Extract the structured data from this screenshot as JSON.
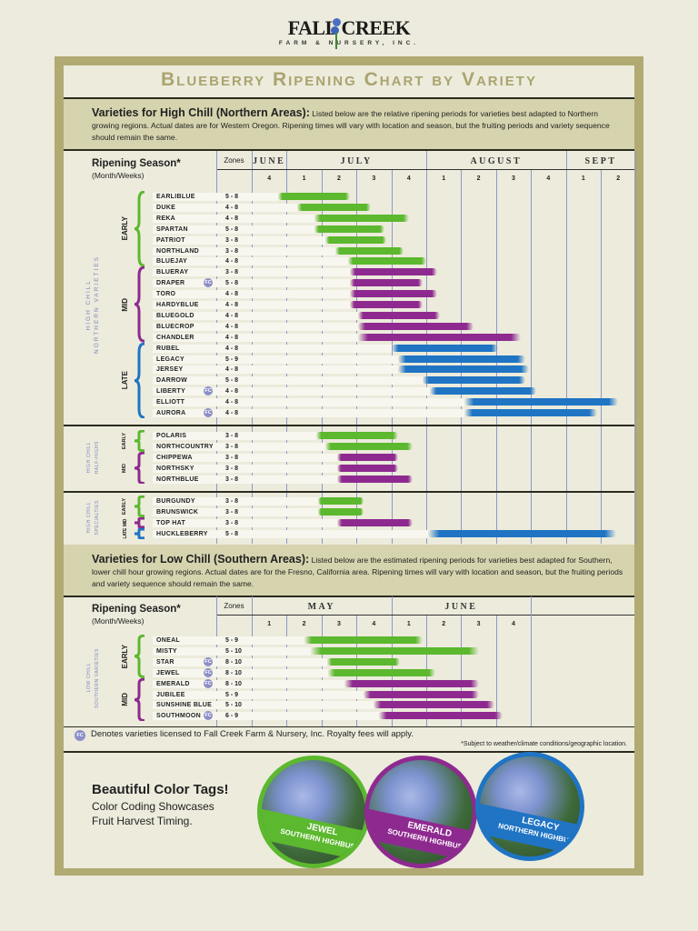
{
  "logo": {
    "name": "FALL CREEK",
    "subtitle": "FARM & NURSERY, INC."
  },
  "header": {
    "title": "Blueberry Ripening Chart by Variety"
  },
  "high_chill_intro": {
    "heading": "Varieties for High Chill (Northern Areas):",
    "text": "Listed below are the relative ripening periods for varieties best adapted to Northern growing regions.  Actual dates are for Western Oregon.  Ripening times will vary with location and season, but the fruiting periods and variety sequence should remain the same."
  },
  "low_chill_intro": {
    "heading": "Varieties for Low Chill (Southern Areas):",
    "text": "Listed below are the estimated ripening periods for varieties best adapted for Southern, lower chill hour growing regions.  Actual dates are for the Fresno, California area.  Ripening times will vary with location and season, but the fruiting periods and variety sequence should remain the same."
  },
  "colors": {
    "early": "#5cb82e",
    "mid": "#8e2a8f",
    "late": "#1f74c4",
    "fc_badge": "#8c8fc7",
    "frame": "#b1aa72"
  },
  "fc_badge_label": "FC",
  "chart_data": [
    {
      "type": "bar",
      "orientation": "horizontal-range",
      "axis_label": "Ripening Season*",
      "axis_sublabel": "(Month/Weeks)",
      "zones_label": "Zones",
      "months": [
        {
          "name": "JUNE",
          "weeks": [
            "4"
          ]
        },
        {
          "name": "JULY",
          "weeks": [
            "1",
            "2",
            "3",
            "4"
          ]
        },
        {
          "name": "AUGUST",
          "weeks": [
            "1",
            "2",
            "3",
            "4"
          ]
        },
        {
          "name": "SEPT",
          "weeks": [
            "1",
            "2"
          ]
        }
      ],
      "range_units": "weeks from start of June week 4",
      "sections": [
        {
          "label": [
            "HIGH CHILL",
            "NORTHERN VARIETIES"
          ],
          "groups": [
            {
              "label": "EARLY",
              "class": "early",
              "varieties": [
                {
                  "name": "EARLIBLUE",
                  "zones": "5 - 8",
                  "fc": false,
                  "start": 0.75,
                  "end": 2.8
                },
                {
                  "name": "DUKE",
                  "zones": "4 - 8",
                  "fc": false,
                  "start": 1.3,
                  "end": 3.4
                },
                {
                  "name": "REKA",
                  "zones": "4 - 8",
                  "fc": false,
                  "start": 1.8,
                  "end": 4.5
                },
                {
                  "name": "SPARTAN",
                  "zones": "5 - 8",
                  "fc": false,
                  "start": 1.8,
                  "end": 3.8
                },
                {
                  "name": "PATRIOT",
                  "zones": "3 - 8",
                  "fc": false,
                  "start": 2.1,
                  "end": 3.85
                },
                {
                  "name": "NORTHLAND",
                  "zones": "3 - 8",
                  "fc": false,
                  "start": 2.4,
                  "end": 4.35
                },
                {
                  "name": "BLUEJAY",
                  "zones": "4 - 8",
                  "fc": false,
                  "start": 2.75,
                  "end": 5.0
                }
              ]
            },
            {
              "label": "MID",
              "class": "mid",
              "varieties": [
                {
                  "name": "BLUERAY",
                  "zones": "3 - 8",
                  "fc": false,
                  "start": 2.8,
                  "end": 5.3
                },
                {
                  "name": "DRAPER",
                  "zones": "5 - 8",
                  "fc": true,
                  "start": 2.8,
                  "end": 4.9
                },
                {
                  "name": "TORO",
                  "zones": "4 - 8",
                  "fc": false,
                  "start": 2.8,
                  "end": 5.3
                },
                {
                  "name": "HARDYBLUE",
                  "zones": "4 - 8",
                  "fc": false,
                  "start": 2.8,
                  "end": 4.9
                },
                {
                  "name": "BLUEGOLD",
                  "zones": "4 - 8",
                  "fc": false,
                  "start": 3.05,
                  "end": 5.4
                },
                {
                  "name": "BLUECROP",
                  "zones": "4 - 8",
                  "fc": false,
                  "start": 3.05,
                  "end": 6.35
                },
                {
                  "name": "CHANDLER",
                  "zones": "4 - 8",
                  "fc": false,
                  "start": 3.05,
                  "end": 7.7
                }
              ]
            },
            {
              "label": "LATE",
              "class": "late",
              "varieties": [
                {
                  "name": "RUBEL",
                  "zones": "4 - 8",
                  "fc": false,
                  "start": 4.0,
                  "end": 7.05
                },
                {
                  "name": "LEGACY",
                  "zones": "5 - 9",
                  "fc": false,
                  "start": 4.2,
                  "end": 7.85
                },
                {
                  "name": "JERSEY",
                  "zones": "4 - 8",
                  "fc": false,
                  "start": 4.2,
                  "end": 7.95
                },
                {
                  "name": "DARROW",
                  "zones": "5 - 8",
                  "fc": false,
                  "start": 4.9,
                  "end": 7.85
                },
                {
                  "name": "LIBERTY",
                  "zones": "4 - 8",
                  "fc": true,
                  "start": 5.1,
                  "end": 8.15
                },
                {
                  "name": "ELLIOTT",
                  "zones": "4 - 8",
                  "fc": false,
                  "start": 6.1,
                  "end": 10.5
                },
                {
                  "name": "AURORA",
                  "zones": "4 - 8",
                  "fc": true,
                  "start": 6.1,
                  "end": 9.9
                }
              ]
            }
          ]
        },
        {
          "label": [
            "HIGH CHILL",
            "HALF-HIGHS"
          ],
          "groups": [
            {
              "label": "EARLY",
              "class": "early",
              "varieties": [
                {
                  "name": "POLARIS",
                  "zones": "3 - 8",
                  "fc": false,
                  "start": 1.85,
                  "end": 4.2
                },
                {
                  "name": "NORTHCOUNTRY",
                  "zones": "3 - 8",
                  "fc": false,
                  "start": 2.1,
                  "end": 4.6
                }
              ]
            },
            {
              "label": "MID",
              "class": "mid",
              "varieties": [
                {
                  "name": "CHIPPEWA",
                  "zones": "3 - 8",
                  "fc": false,
                  "start": 2.45,
                  "end": 4.2
                },
                {
                  "name": "NORTHSKY",
                  "zones": "3 - 8",
                  "fc": false,
                  "start": 2.45,
                  "end": 4.2
                },
                {
                  "name": "NORTHBLUE",
                  "zones": "3 - 8",
                  "fc": false,
                  "start": 2.45,
                  "end": 4.6
                }
              ]
            }
          ]
        },
        {
          "label": [
            "HIGH CHILL",
            "SPECIALTIES"
          ],
          "groups": [
            {
              "label": "EARLY",
              "class": "early",
              "varieties": [
                {
                  "name": "BURGUNDY",
                  "zones": "3 - 8",
                  "fc": false,
                  "start": 1.9,
                  "end": 3.2
                },
                {
                  "name": "BRUNSWICK",
                  "zones": "3 - 8",
                  "fc": false,
                  "start": 1.9,
                  "end": 3.2
                }
              ]
            },
            {
              "label": "MID",
              "class": "mid",
              "varieties": [
                {
                  "name": "TOP HAT",
                  "zones": "3 - 8",
                  "fc": false,
                  "start": 2.45,
                  "end": 4.6
                }
              ]
            },
            {
              "label": "LATE",
              "class": "late",
              "varieties": [
                {
                  "name": "HUCKLEBERRY",
                  "zones": "5 - 8",
                  "fc": false,
                  "start": 5.05,
                  "end": 10.45
                }
              ]
            }
          ]
        }
      ]
    },
    {
      "type": "bar",
      "orientation": "horizontal-range",
      "axis_label": "Ripening Season*",
      "axis_sublabel": "(Month/Weeks)",
      "zones_label": "Zones",
      "months": [
        {
          "name": "MAY",
          "weeks": [
            "1",
            "2",
            "3",
            "4"
          ]
        },
        {
          "name": "JUNE",
          "weeks": [
            "1",
            "2",
            "3",
            "4"
          ]
        }
      ],
      "range_units": "weeks from start of May week 1",
      "sections": [
        {
          "label": [
            "LOW CHILL",
            "SOUTHERN VARIETIES"
          ],
          "groups": [
            {
              "label": "EARLY",
              "class": "early",
              "varieties": [
                {
                  "name": "ONEAL",
                  "zones": "5 - 9",
                  "fc": false,
                  "start": 1.5,
                  "end": 4.9
                },
                {
                  "name": "MISTY",
                  "zones": "5 - 10",
                  "fc": false,
                  "start": 1.7,
                  "end": 6.5
                },
                {
                  "name": "STAR",
                  "zones": "8 - 10",
                  "fc": true,
                  "start": 2.15,
                  "end": 4.25
                },
                {
                  "name": "JEWEL",
                  "zones": "8 - 10",
                  "fc": true,
                  "start": 2.2,
                  "end": 5.25
                }
              ]
            },
            {
              "label": "MID",
              "class": "mid",
              "varieties": [
                {
                  "name": "EMERALD",
                  "zones": "8 - 10",
                  "fc": true,
                  "start": 2.65,
                  "end": 6.5
                },
                {
                  "name": "JUBILEE",
                  "zones": "5 - 9",
                  "fc": false,
                  "start": 3.2,
                  "end": 6.5
                },
                {
                  "name": "SUNSHINE BLUE",
                  "zones": "5 - 10",
                  "fc": false,
                  "start": 3.5,
                  "end": 6.95
                },
                {
                  "name": "SOUTHMOON",
                  "zones": "6 - 9",
                  "fc": true,
                  "start": 3.65,
                  "end": 7.2
                }
              ]
            }
          ]
        }
      ]
    }
  ],
  "footer": {
    "fc_note": "Denotes varieties licensed to Fall Creek Farm & Nursery, Inc. Royalty fees will apply.",
    "subject_note": "*Subject to weather/climate conditions/geographic location."
  },
  "promo": {
    "title": "Beautiful Color Tags!",
    "line1": "Color Coding Showcases",
    "line2": "Fruit Harvest Timing.",
    "tags": [
      {
        "name": "JEWEL",
        "type": "SOUTHERN HIGHBUSH",
        "color": "#5cb82e"
      },
      {
        "name": "EMERALD",
        "type": "SOUTHERN HIGHBUSH",
        "color": "#8e2a8f"
      },
      {
        "name": "LEGACY",
        "type": "NORTHERN HIGHBUSH",
        "color": "#1f74c4"
      }
    ]
  }
}
